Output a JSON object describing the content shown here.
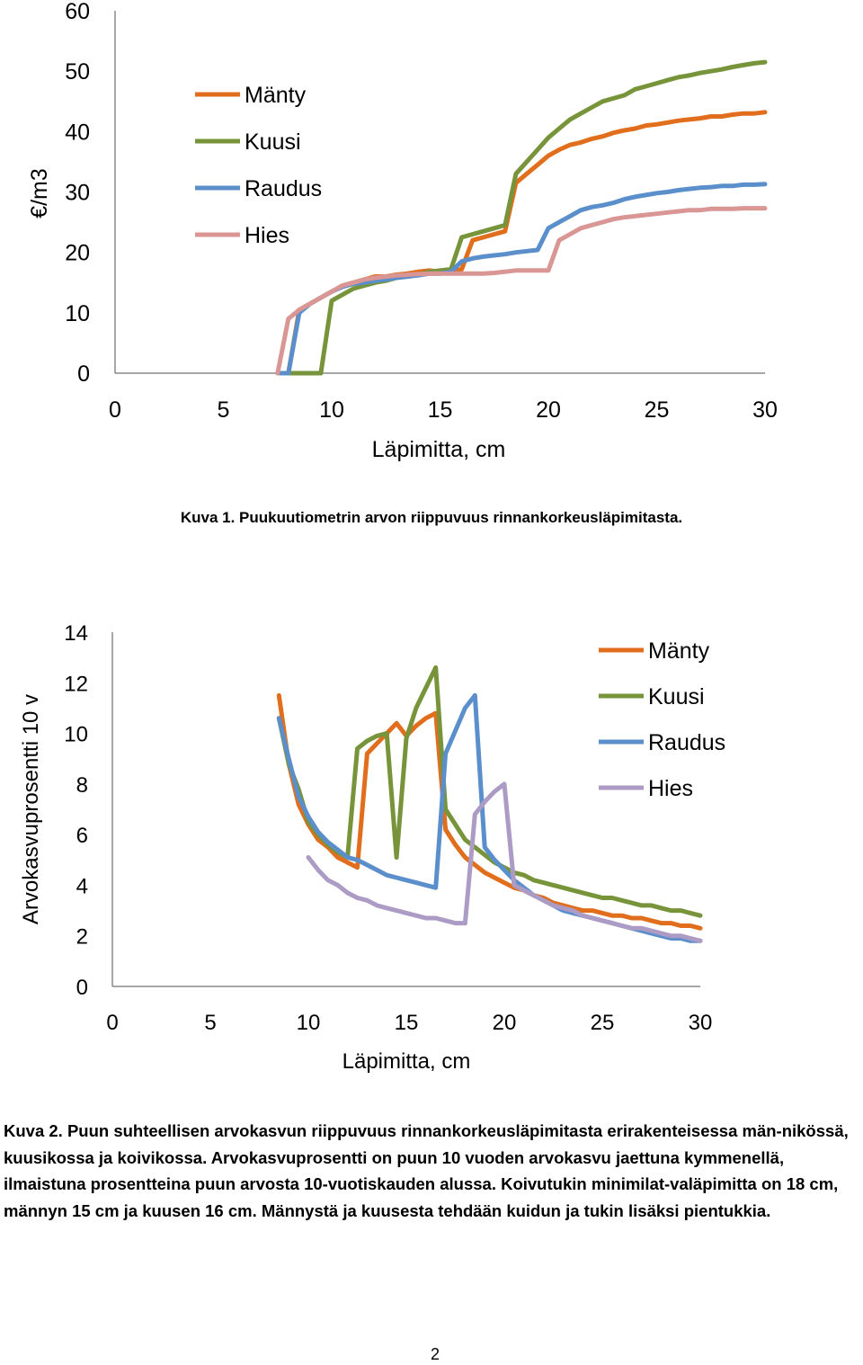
{
  "chart_data": [
    {
      "type": "line",
      "title": "",
      "xlabel": "Läpimitta, cm",
      "ylabel": "€/m3",
      "xlim": [
        0,
        30
      ],
      "ylim": [
        0,
        60
      ],
      "x_ticks": [
        "0",
        "5",
        "10",
        "15",
        "20",
        "25",
        "30"
      ],
      "y_ticks": [
        "0",
        "10",
        "20",
        "30",
        "40",
        "50",
        "60"
      ],
      "grid": false,
      "legend": "upper-left",
      "series": [
        {
          "name": "Mänty",
          "color": "#E06E1C",
          "x": [
            7.5,
            8,
            8.5,
            9,
            9.5,
            10,
            10.5,
            11,
            11.5,
            12,
            12.5,
            13,
            13.5,
            14,
            14.5,
            15,
            15.5,
            16,
            16.5,
            17,
            17.5,
            18,
            18.5,
            19,
            19.5,
            20,
            20.5,
            21,
            21.5,
            22,
            22.5,
            23,
            23.5,
            24,
            24.5,
            25,
            25.5,
            26,
            26.5,
            27,
            27.5,
            28,
            28.5,
            29,
            29.5,
            30
          ],
          "y": [
            0,
            0,
            10.5,
            11.5,
            12.5,
            13.5,
            14.5,
            15,
            15.5,
            16,
            16,
            16.3,
            16.5,
            16.8,
            17,
            16.8,
            17,
            17.2,
            22,
            22.5,
            23,
            23.5,
            31.5,
            33,
            34.5,
            36,
            37,
            37.8,
            38.2,
            38.8,
            39.2,
            39.8,
            40.2,
            40.5,
            41,
            41.2,
            41.5,
            41.8,
            42,
            42.2,
            42.5,
            42.5,
            42.8,
            43,
            43,
            43.2
          ]
        },
        {
          "name": "Kuusi",
          "color": "#77943B",
          "x": [
            7.5,
            8,
            8.5,
            9,
            9.5,
            10,
            10.5,
            11,
            11.5,
            12,
            12.5,
            13,
            13.5,
            14,
            14.5,
            15,
            15.5,
            16,
            16.5,
            17,
            17.5,
            18,
            18.5,
            19,
            19.5,
            20,
            20.5,
            21,
            21.5,
            22,
            22.5,
            23,
            23.5,
            24,
            24.5,
            25,
            25.5,
            26,
            26.5,
            27,
            27.5,
            28,
            28.5,
            29,
            29.5,
            30
          ],
          "y": [
            0,
            0,
            0,
            0,
            0,
            12,
            13,
            14,
            14.5,
            15,
            15.3,
            15.8,
            16,
            16.3,
            16.8,
            17,
            17.2,
            22.5,
            23,
            23.5,
            24,
            24.5,
            33,
            35,
            37,
            39,
            40.5,
            42,
            43,
            44,
            45,
            45.5,
            46,
            47,
            47.5,
            48,
            48.5,
            49,
            49.3,
            49.7,
            50,
            50.3,
            50.7,
            51,
            51.3,
            51.5
          ]
        },
        {
          "name": "Raudus",
          "color": "#5B8FCB",
          "x": [
            7.5,
            8,
            8.5,
            9,
            9.5,
            10,
            10.5,
            11,
            11.5,
            12,
            12.5,
            13,
            13.5,
            14,
            14.5,
            15,
            15.5,
            16,
            16.5,
            17,
            17.5,
            18,
            18.5,
            19,
            19.5,
            20,
            20.5,
            21,
            21.5,
            22,
            22.5,
            23,
            23.5,
            24,
            24.5,
            25,
            25.5,
            26,
            26.5,
            27,
            27.5,
            28,
            28.5,
            29,
            29.5,
            30
          ],
          "y": [
            0,
            0,
            10,
            11.5,
            12.5,
            13.5,
            14.3,
            14.8,
            15,
            15.3,
            15.5,
            15.8,
            16,
            16.2,
            16.5,
            16.5,
            16.8,
            18.5,
            19,
            19.3,
            19.5,
            19.7,
            20,
            20.2,
            20.4,
            24,
            25,
            26,
            27,
            27.5,
            27.8,
            28.2,
            28.8,
            29.2,
            29.5,
            29.8,
            30,
            30.3,
            30.5,
            30.7,
            30.8,
            31,
            31,
            31.2,
            31.2,
            31.3
          ]
        },
        {
          "name": "Hies",
          "color": "#D99694",
          "x": [
            7.5,
            8,
            8.5,
            9,
            9.5,
            10,
            10.5,
            11,
            11.5,
            12,
            12.5,
            13,
            13.5,
            14,
            14.5,
            15,
            15.5,
            16,
            16.5,
            17,
            17.5,
            18,
            18.5,
            19,
            19.5,
            20,
            20.5,
            21,
            21.5,
            22,
            22.5,
            23,
            23.5,
            24,
            24.5,
            25,
            25.5,
            26,
            26.5,
            27,
            27.5,
            28,
            28.5,
            29,
            29.5,
            30
          ],
          "y": [
            0,
            9,
            10.5,
            11.5,
            12.5,
            13.5,
            14.5,
            15,
            15.5,
            15.8,
            16,
            16.2,
            16.3,
            16.4,
            16.5,
            16.5,
            16.5,
            16.5,
            16.5,
            16.5,
            16.6,
            16.8,
            17,
            17,
            17,
            17,
            22,
            23,
            24,
            24.5,
            25,
            25.5,
            25.8,
            26,
            26.2,
            26.4,
            26.6,
            26.8,
            27,
            27,
            27.2,
            27.2,
            27.2,
            27.3,
            27.3,
            27.3
          ]
        }
      ]
    },
    {
      "type": "line",
      "title": "",
      "xlabel": "Läpimitta, cm",
      "ylabel": "Arvokasvuprosentti 10 v",
      "xlim": [
        0,
        30
      ],
      "ylim": [
        0,
        14
      ],
      "x_ticks": [
        "0",
        "5",
        "10",
        "15",
        "20",
        "25",
        "30"
      ],
      "y_ticks": [
        "0",
        "2",
        "4",
        "6",
        "8",
        "10",
        "12",
        "14"
      ],
      "grid": false,
      "legend": "upper-right",
      "series": [
        {
          "name": "Mänty",
          "color": "#E06E1C",
          "x": [
            8.5,
            9,
            9.5,
            10,
            10.5,
            11,
            11.5,
            12,
            12.5,
            13,
            13.5,
            14,
            14.5,
            15,
            15.5,
            16,
            16.5,
            17,
            17.5,
            18,
            18.5,
            19,
            19.5,
            20,
            20.5,
            21,
            21.5,
            22,
            22.5,
            23,
            23.5,
            24,
            24.5,
            25,
            25.5,
            26,
            26.5,
            27,
            27.5,
            28,
            28.5,
            29,
            29.5,
            30
          ],
          "y": [
            11.5,
            8.8,
            7.2,
            6.4,
            5.8,
            5.5,
            5.1,
            4.9,
            4.7,
            9.2,
            9.6,
            10,
            10.4,
            9.9,
            10.3,
            10.6,
            10.8,
            6.2,
            5.6,
            5.1,
            4.8,
            4.5,
            4.3,
            4.1,
            3.9,
            3.8,
            3.6,
            3.5,
            3.3,
            3.2,
            3.1,
            3.0,
            3.0,
            2.9,
            2.8,
            2.8,
            2.7,
            2.7,
            2.6,
            2.5,
            2.5,
            2.4,
            2.4,
            2.3
          ]
        },
        {
          "name": "Kuusi",
          "color": "#77943B",
          "x": [
            8.5,
            9,
            9.5,
            10,
            10.5,
            11,
            11.5,
            12,
            12.5,
            13,
            13.5,
            14,
            14.5,
            15,
            15.5,
            16,
            16.5,
            17,
            17.5,
            18,
            18.5,
            19,
            19.5,
            20,
            20.5,
            21,
            21.5,
            22,
            22.5,
            23,
            23.5,
            24,
            24.5,
            25,
            25.5,
            26,
            26.5,
            27,
            27.5,
            28,
            28.5,
            29,
            29.5,
            30
          ],
          "y": [
            10.6,
            8.8,
            7.8,
            6.5,
            6,
            5.6,
            5.3,
            5.1,
            9.4,
            9.7,
            9.9,
            10,
            5.1,
            9.8,
            11,
            11.8,
            12.6,
            7,
            6.4,
            5.8,
            5.5,
            5.2,
            4.9,
            4.7,
            4.5,
            4.4,
            4.2,
            4.1,
            4.0,
            3.9,
            3.8,
            3.7,
            3.6,
            3.5,
            3.5,
            3.4,
            3.3,
            3.2,
            3.2,
            3.1,
            3.0,
            3.0,
            2.9,
            2.8
          ]
        },
        {
          "name": "Raudus",
          "color": "#5B8FCB",
          "x": [
            8.5,
            9,
            9.5,
            10,
            10.5,
            11,
            11.5,
            12,
            12.5,
            13,
            13.5,
            14,
            14.5,
            15,
            15.5,
            16,
            16.5,
            17,
            17.5,
            18,
            18.5,
            19,
            19.5,
            20,
            20.5,
            21,
            21.5,
            22,
            22.5,
            23,
            23.5,
            24,
            24.5,
            25,
            25.5,
            26,
            26.5,
            27,
            27.5,
            28,
            28.5,
            29,
            29.5,
            30
          ],
          "y": [
            10.6,
            9,
            7.5,
            6.7,
            6.1,
            5.7,
            5.4,
            5.1,
            5,
            4.8,
            4.6,
            4.4,
            4.3,
            4.2,
            4.1,
            4,
            3.9,
            9.2,
            10.1,
            11,
            11.5,
            5.5,
            5,
            4.6,
            4.2,
            3.9,
            3.6,
            3.4,
            3.2,
            3.0,
            2.9,
            2.8,
            2.7,
            2.6,
            2.5,
            2.4,
            2.3,
            2.2,
            2.1,
            2.0,
            1.9,
            1.9,
            1.8,
            1.8
          ]
        },
        {
          "name": "Hies",
          "color": "#AC9BC5",
          "x": [
            10,
            10.5,
            11,
            11.5,
            12,
            12.5,
            13,
            13.5,
            14,
            14.5,
            15,
            15.5,
            16,
            16.5,
            17,
            17.5,
            18,
            18.5,
            19,
            19.5,
            20,
            20.5,
            21,
            21.5,
            22,
            22.5,
            23,
            23.5,
            24,
            24.5,
            25,
            25.5,
            26,
            26.5,
            27,
            27.5,
            28,
            28.5,
            29,
            29.5,
            30
          ],
          "y": [
            5.1,
            4.6,
            4.2,
            4.0,
            3.7,
            3.5,
            3.4,
            3.2,
            3.1,
            3.0,
            2.9,
            2.8,
            2.7,
            2.7,
            2.6,
            2.5,
            2.5,
            6.8,
            7.3,
            7.7,
            8.0,
            4.0,
            3.8,
            3.6,
            3.4,
            3.2,
            3.1,
            3.0,
            2.8,
            2.7,
            2.6,
            2.5,
            2.4,
            2.3,
            2.3,
            2.2,
            2.1,
            2.0,
            2.0,
            1.9,
            1.8
          ]
        }
      ]
    }
  ],
  "captions": {
    "caption1": "Kuva 1. Puukuutiometrin arvon riippuvuus rinnankorkeusläpimitasta.",
    "caption2": "Kuva 2. Puun suhteellisen arvokasvun riippuvuus rinnankorkeusläpimitasta erirakenteisessa män-nikössä, kuusikossa ja koivikossa. Arvokasvuprosentti on puun 10 vuoden arvokasvu jaettuna kymmenellä, ilmaistuna prosentteina puun arvosta 10-vuotiskauden alussa. Koivutukin minimilat-valäpimitta on 18 cm, männyn 15 cm ja kuusen 16 cm. Männystä ja kuusesta tehdään kuidun ja tukin lisäksi pientukkia."
  },
  "page_number": "2"
}
